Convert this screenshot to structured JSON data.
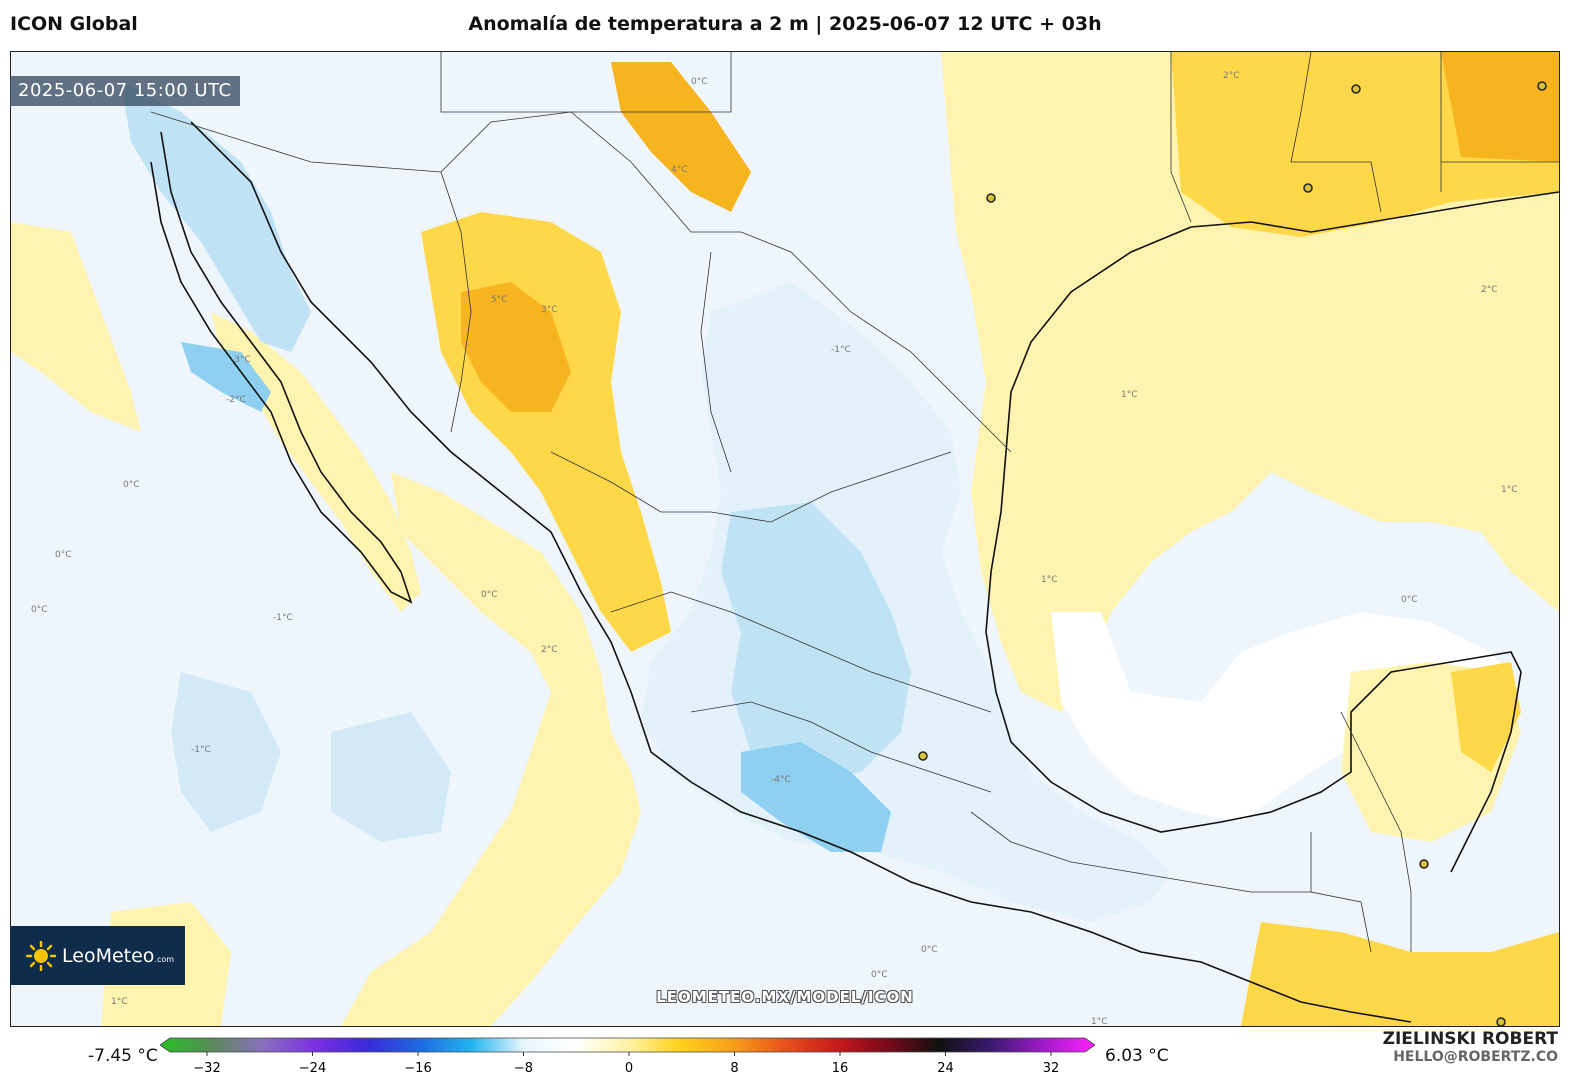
{
  "header": {
    "model": "ICON Global",
    "title": "Anomalía de temperatura a 2 m | 2025-06-07 12 UTC + 03h"
  },
  "map": {
    "valid_time": "2025-06-07 15:00 UTC",
    "watermark": "LEOMETEO.MX/MODEL/ICON",
    "contour_labels": [
      "0°C",
      "1°C",
      "2°C",
      "3°C",
      "4°C",
      "5°C",
      "-1°C",
      "-2°C",
      "-3°C",
      "-4°C"
    ]
  },
  "legend": {
    "min_label": "-7.45 °C",
    "max_label": "6.03 °C",
    "ticks": [
      "−32",
      "−24",
      "−16",
      "−8",
      "0",
      "8",
      "16",
      "24",
      "32"
    ],
    "gradient_colors": [
      "#22c022",
      "#5a8a5a",
      "#8a6fc0",
      "#7a2ee0",
      "#3a2ad8",
      "#1e6ae0",
      "#22b6f0",
      "#e8f6fc",
      "#ffffff",
      "#fff3a8",
      "#ffd21a",
      "#f7a21a",
      "#e8541a",
      "#c81a1a",
      "#7a0a1a",
      "#101010",
      "#3a1a70",
      "#a01ac8",
      "#ff22ff"
    ]
  },
  "branding": {
    "logo_main": "LeoMeteo",
    "logo_suffix": ".com",
    "author": "ZIELINSKI ROBERT",
    "email": "HELLO@ROBERTZ.CO"
  },
  "colors": {
    "warm_light": "#fff3b0",
    "warm_mid": "#ffd84a",
    "warm_strong": "#f6b41e",
    "cool_light": "#e3f1fa",
    "cool_mid": "#bfe2f5",
    "cool_strong": "#8fd0f0",
    "logo_bg": "#0f2c4a"
  }
}
